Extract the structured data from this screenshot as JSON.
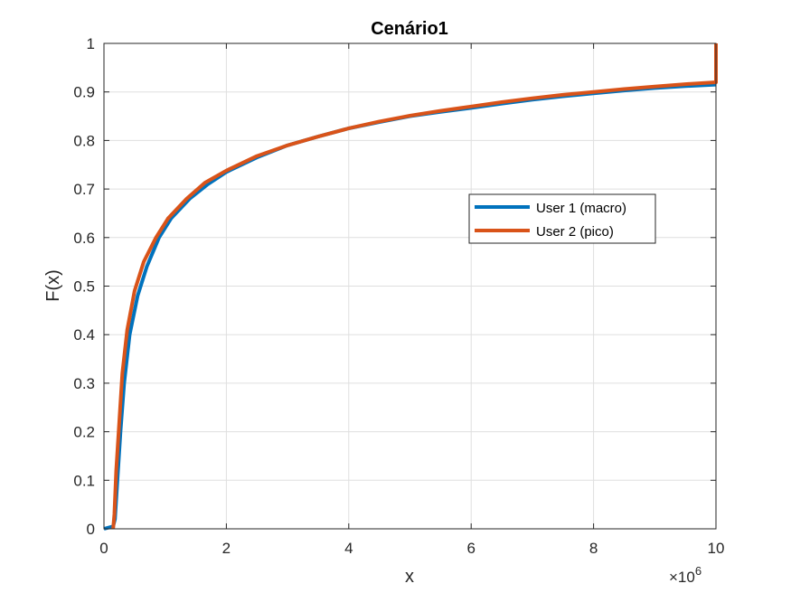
{
  "chart_data": {
    "type": "line",
    "title": "Cenário1",
    "xlabel": "x",
    "ylabel": "F(x)",
    "x_exponent_label": "×10",
    "x_exponent_power": "6",
    "xlim": [
      0,
      10
    ],
    "ylim": [
      0,
      1
    ],
    "xticks": [
      0,
      2,
      4,
      6,
      8,
      10
    ],
    "xtick_labels": [
      "0",
      "2",
      "4",
      "6",
      "8",
      "10"
    ],
    "yticks": [
      0,
      0.1,
      0.2,
      0.3,
      0.4,
      0.5,
      0.6,
      0.7,
      0.8,
      0.9,
      1
    ],
    "ytick_labels": [
      "0",
      "0.1",
      "0.2",
      "0.3",
      "0.4",
      "0.5",
      "0.6",
      "0.7",
      "0.8",
      "0.9",
      "1"
    ],
    "grid": true,
    "legend_position": "center-right",
    "series": [
      {
        "name": "User 1 (macro)",
        "color": "#0072BD",
        "points": [
          [
            0,
            0
          ],
          [
            0.15,
            0.005
          ],
          [
            0.18,
            0.02
          ],
          [
            0.22,
            0.1
          ],
          [
            0.27,
            0.2
          ],
          [
            0.33,
            0.3
          ],
          [
            0.42,
            0.4
          ],
          [
            0.55,
            0.48
          ],
          [
            0.7,
            0.54
          ],
          [
            0.9,
            0.6
          ],
          [
            1.1,
            0.64
          ],
          [
            1.4,
            0.68
          ],
          [
            1.7,
            0.71
          ],
          [
            2.0,
            0.735
          ],
          [
            2.5,
            0.765
          ],
          [
            3.0,
            0.79
          ],
          [
            3.5,
            0.808
          ],
          [
            4.0,
            0.825
          ],
          [
            4.5,
            0.838
          ],
          [
            5.0,
            0.85
          ],
          [
            5.5,
            0.859
          ],
          [
            6.0,
            0.867
          ],
          [
            6.5,
            0.876
          ],
          [
            7.0,
            0.884
          ],
          [
            7.5,
            0.891
          ],
          [
            8.0,
            0.897
          ],
          [
            8.5,
            0.903
          ],
          [
            9.0,
            0.908
          ],
          [
            9.5,
            0.912
          ],
          [
            10.0,
            0.915
          ]
        ]
      },
      {
        "name": "User 2 (pico)",
        "color": "#D95319",
        "points": [
          [
            0.15,
            0
          ],
          [
            0.17,
            0.03
          ],
          [
            0.2,
            0.12
          ],
          [
            0.25,
            0.22
          ],
          [
            0.3,
            0.32
          ],
          [
            0.38,
            0.41
          ],
          [
            0.5,
            0.49
          ],
          [
            0.65,
            0.55
          ],
          [
            0.85,
            0.6
          ],
          [
            1.05,
            0.64
          ],
          [
            1.35,
            0.68
          ],
          [
            1.65,
            0.713
          ],
          [
            2.0,
            0.738
          ],
          [
            2.5,
            0.768
          ],
          [
            3.0,
            0.79
          ],
          [
            3.5,
            0.808
          ],
          [
            4.0,
            0.825
          ],
          [
            4.5,
            0.839
          ],
          [
            5.0,
            0.851
          ],
          [
            5.5,
            0.861
          ],
          [
            6.0,
            0.87
          ],
          [
            6.5,
            0.879
          ],
          [
            7.0,
            0.887
          ],
          [
            7.5,
            0.894
          ],
          [
            8.0,
            0.9
          ],
          [
            8.5,
            0.906
          ],
          [
            9.0,
            0.911
          ],
          [
            9.5,
            0.916
          ],
          [
            10.0,
            0.92
          ],
          [
            10.0,
            1.0
          ]
        ]
      }
    ]
  }
}
